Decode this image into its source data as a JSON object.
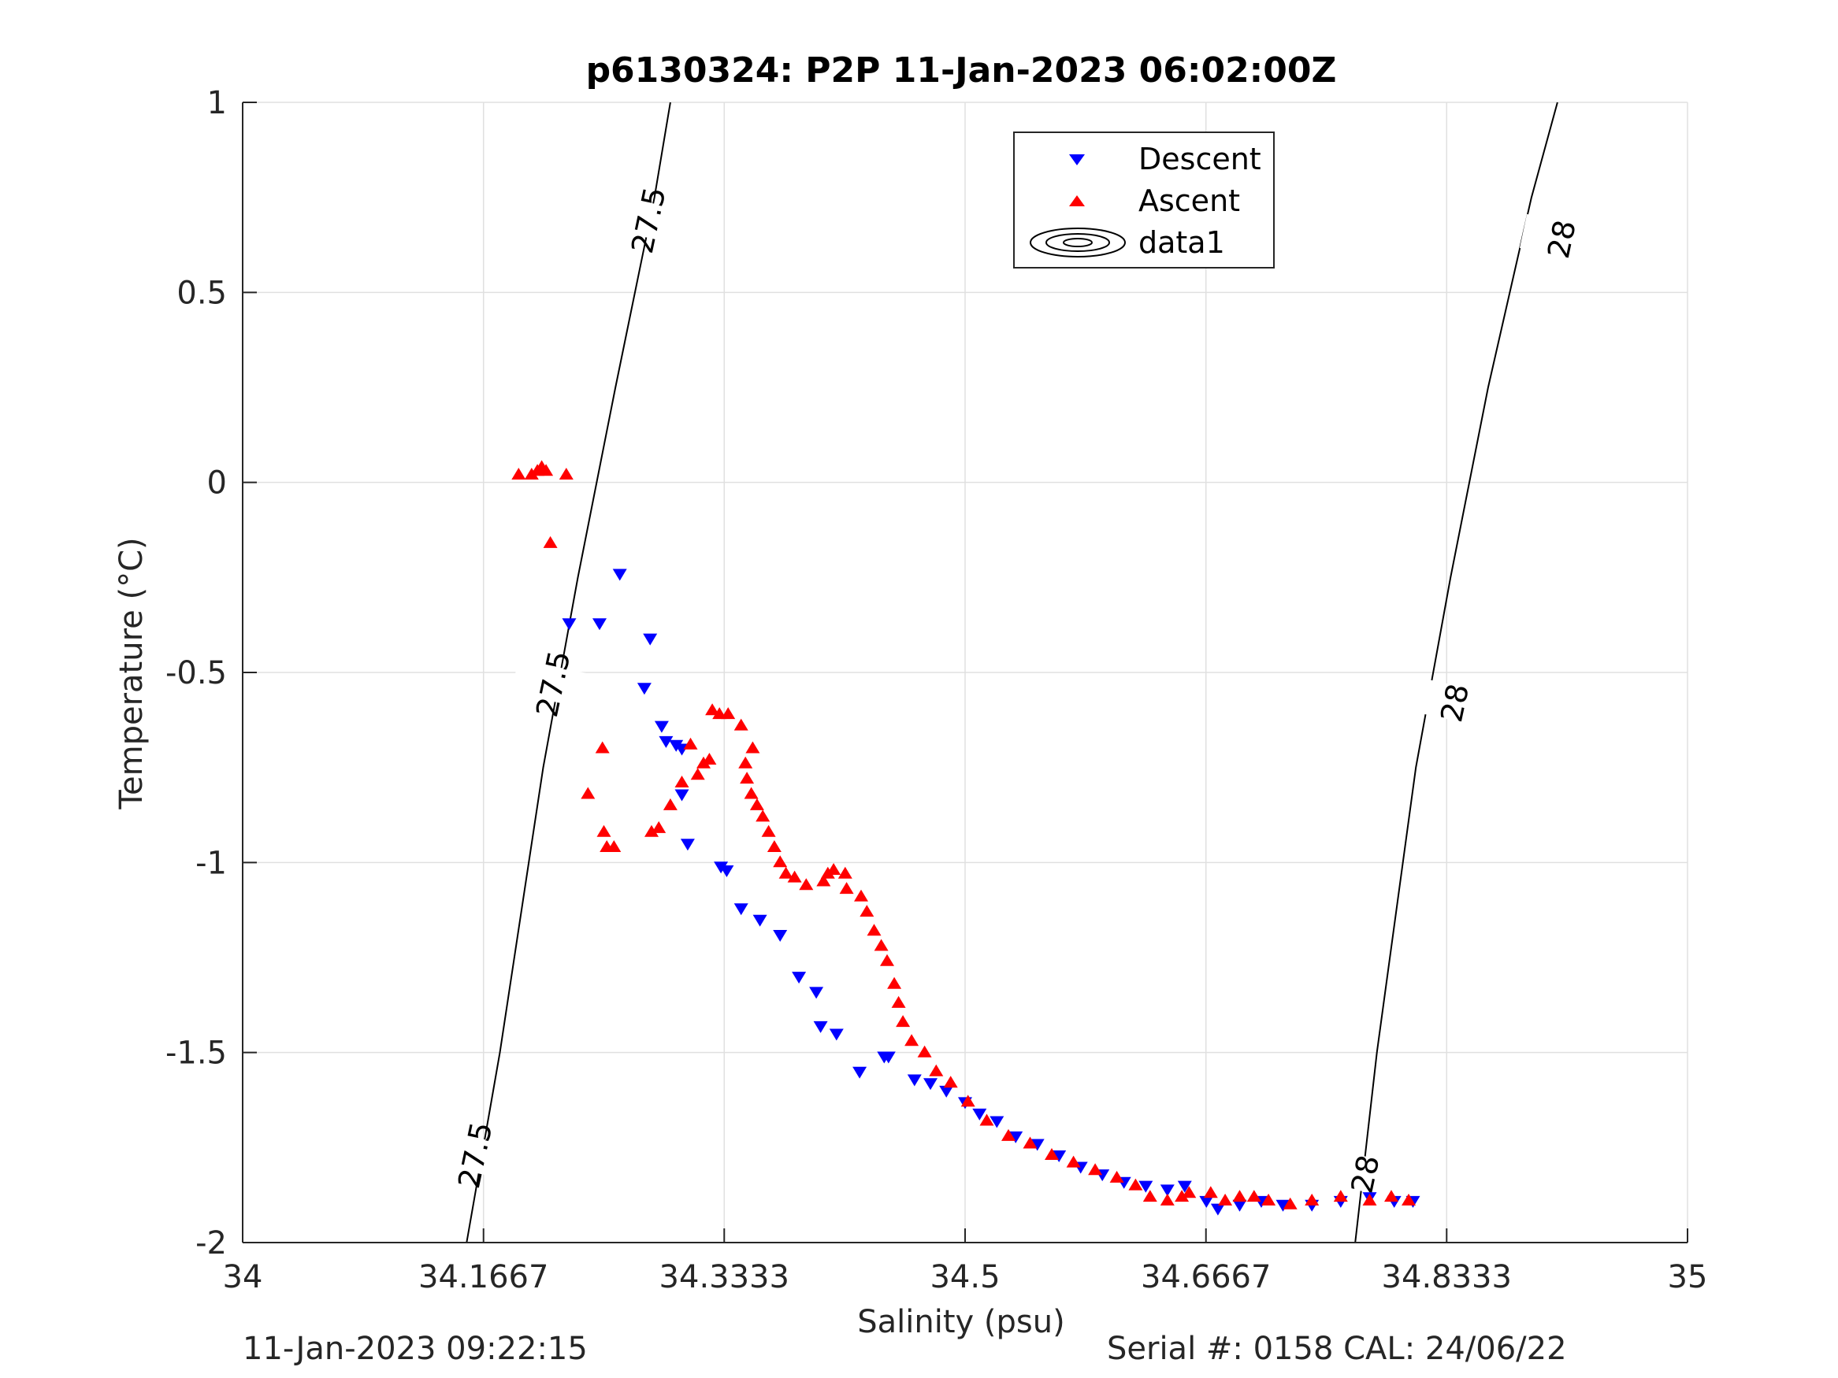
{
  "chart_data": {
    "type": "scatter",
    "title": "p6130324: P2P 11-Jan-2023 06:02:00Z",
    "xlabel": "Salinity (psu)",
    "ylabel": "Temperature (°C)",
    "xlim": [
      34,
      35
    ],
    "ylim": [
      -2,
      1
    ],
    "xticks": [
      34,
      34.1667,
      34.3333,
      34.5,
      34.6667,
      34.8333,
      35
    ],
    "xtick_labels": [
      "34",
      "34.1667",
      "34.3333",
      "34.5",
      "34.6667",
      "34.8333",
      "35"
    ],
    "yticks": [
      -2,
      -1.5,
      -1,
      -0.5,
      0,
      0.5,
      1
    ],
    "ytick_labels": [
      "-2",
      "-1.5",
      "-1",
      "-0.5",
      "0",
      "0.5",
      "1"
    ],
    "grid": true,
    "legend": {
      "placement": "top",
      "entries": [
        "Descent",
        "Ascent",
        "data1"
      ]
    },
    "colors": {
      "descent": "#0000ff",
      "ascent": "#ff0000",
      "contour": "#000000",
      "grid": "#e0e0e0",
      "axis": "#262626"
    },
    "series": [
      {
        "name": "Descent",
        "marker": "triangle-down",
        "color": "#0000ff",
        "points": [
          [
            34.226,
            -0.37
          ],
          [
            34.247,
            -0.37
          ],
          [
            34.261,
            -0.24
          ],
          [
            34.282,
            -0.41
          ],
          [
            34.278,
            -0.54
          ],
          [
            34.29,
            -0.64
          ],
          [
            34.293,
            -0.68
          ],
          [
            34.3,
            -0.69
          ],
          [
            34.304,
            -0.7
          ],
          [
            34.304,
            -0.82
          ],
          [
            34.308,
            -0.95
          ],
          [
            34.331,
            -1.01
          ],
          [
            34.335,
            -1.02
          ],
          [
            34.345,
            -1.12
          ],
          [
            34.358,
            -1.15
          ],
          [
            34.372,
            -1.19
          ],
          [
            34.385,
            -1.3
          ],
          [
            34.397,
            -1.34
          ],
          [
            34.4,
            -1.43
          ],
          [
            34.411,
            -1.45
          ],
          [
            34.427,
            -1.55
          ],
          [
            34.444,
            -1.51
          ],
          [
            34.447,
            -1.51
          ],
          [
            34.465,
            -1.57
          ],
          [
            34.476,
            -1.58
          ],
          [
            34.487,
            -1.6
          ],
          [
            34.5,
            -1.63
          ],
          [
            34.51,
            -1.66
          ],
          [
            34.522,
            -1.68
          ],
          [
            34.535,
            -1.72
          ],
          [
            34.55,
            -1.74
          ],
          [
            34.565,
            -1.77
          ],
          [
            34.58,
            -1.8
          ],
          [
            34.595,
            -1.82
          ],
          [
            34.61,
            -1.84
          ],
          [
            34.625,
            -1.85
          ],
          [
            34.64,
            -1.86
          ],
          [
            34.652,
            -1.85
          ],
          [
            34.667,
            -1.89
          ],
          [
            34.675,
            -1.91
          ],
          [
            34.69,
            -1.9
          ],
          [
            34.705,
            -1.89
          ],
          [
            34.72,
            -1.9
          ],
          [
            34.74,
            -1.9
          ],
          [
            34.76,
            -1.89
          ],
          [
            34.78,
            -1.88
          ],
          [
            34.797,
            -1.89
          ],
          [
            34.81,
            -1.89
          ]
        ]
      },
      {
        "name": "Ascent",
        "marker": "triangle-up",
        "color": "#ff0000",
        "points": [
          [
            34.191,
            0.02
          ],
          [
            34.2,
            0.02
          ],
          [
            34.204,
            0.03
          ],
          [
            34.207,
            0.04
          ],
          [
            34.21,
            0.03
          ],
          [
            34.213,
            -0.16
          ],
          [
            34.224,
            0.02
          ],
          [
            34.239,
            -0.82
          ],
          [
            34.249,
            -0.7
          ],
          [
            34.25,
            -0.92
          ],
          [
            34.252,
            -0.96
          ],
          [
            34.257,
            -0.96
          ],
          [
            34.283,
            -0.92
          ],
          [
            34.288,
            -0.91
          ],
          [
            34.296,
            -0.85
          ],
          [
            34.304,
            -0.79
          ],
          [
            34.31,
            -0.69
          ],
          [
            34.315,
            -0.77
          ],
          [
            34.319,
            -0.74
          ],
          [
            34.323,
            -0.73
          ],
          [
            34.325,
            -0.6
          ],
          [
            34.33,
            -0.61
          ],
          [
            34.336,
            -0.61
          ],
          [
            34.345,
            -0.64
          ],
          [
            34.348,
            -0.74
          ],
          [
            34.349,
            -0.78
          ],
          [
            34.352,
            -0.82
          ],
          [
            34.353,
            -0.7
          ],
          [
            34.356,
            -0.85
          ],
          [
            34.36,
            -0.88
          ],
          [
            34.364,
            -0.92
          ],
          [
            34.368,
            -0.96
          ],
          [
            34.372,
            -1.0
          ],
          [
            34.376,
            -1.03
          ],
          [
            34.382,
            -1.04
          ],
          [
            34.39,
            -1.06
          ],
          [
            34.402,
            -1.05
          ],
          [
            34.405,
            -1.03
          ],
          [
            34.409,
            -1.02
          ],
          [
            34.417,
            -1.03
          ],
          [
            34.418,
            -1.07
          ],
          [
            34.428,
            -1.09
          ],
          [
            34.432,
            -1.13
          ],
          [
            34.437,
            -1.18
          ],
          [
            34.442,
            -1.22
          ],
          [
            34.446,
            -1.26
          ],
          [
            34.451,
            -1.32
          ],
          [
            34.454,
            -1.37
          ],
          [
            34.457,
            -1.42
          ],
          [
            34.463,
            -1.47
          ],
          [
            34.472,
            -1.5
          ],
          [
            34.48,
            -1.55
          ],
          [
            34.49,
            -1.58
          ],
          [
            34.502,
            -1.63
          ],
          [
            34.515,
            -1.68
          ],
          [
            34.53,
            -1.72
          ],
          [
            34.545,
            -1.74
          ],
          [
            34.56,
            -1.77
          ],
          [
            34.575,
            -1.79
          ],
          [
            34.59,
            -1.81
          ],
          [
            34.605,
            -1.83
          ],
          [
            34.618,
            -1.85
          ],
          [
            34.628,
            -1.88
          ],
          [
            34.64,
            -1.89
          ],
          [
            34.65,
            -1.88
          ],
          [
            34.655,
            -1.87
          ],
          [
            34.67,
            -1.87
          ],
          [
            34.68,
            -1.89
          ],
          [
            34.69,
            -1.88
          ],
          [
            34.7,
            -1.88
          ],
          [
            34.71,
            -1.89
          ],
          [
            34.725,
            -1.9
          ],
          [
            34.74,
            -1.89
          ],
          [
            34.76,
            -1.88
          ],
          [
            34.78,
            -1.89
          ],
          [
            34.795,
            -1.88
          ],
          [
            34.807,
            -1.89
          ]
        ]
      },
      {
        "name": "data1",
        "type": "contour",
        "color": "#000000",
        "levels": [
          {
            "label": "27.5",
            "points": [
              [
                34.155,
                -2.0
              ],
              [
                34.178,
                -1.5
              ],
              [
                34.208,
                -0.75
              ],
              [
                34.232,
                -0.25
              ],
              [
                34.258,
                0.25
              ],
              [
                34.285,
                0.75
              ],
              [
                34.296,
                1.0
              ]
            ]
          },
          {
            "label": "28",
            "points": [
              [
                34.77,
                -2.0
              ],
              [
                34.785,
                -1.5
              ],
              [
                34.812,
                -0.75
              ],
              [
                34.836,
                -0.25
              ],
              [
                34.862,
                0.25
              ],
              [
                34.892,
                0.75
              ],
              [
                34.91,
                1.0
              ]
            ]
          }
        ],
        "labels": [
          {
            "text": "27.5",
            "x": 34.161,
            "y": -1.77
          },
          {
            "text": "27.5",
            "x": 34.215,
            "y": -0.53
          },
          {
            "text": "27.5",
            "x": 34.281,
            "y": 0.69
          },
          {
            "text": "28",
            "x": 34.777,
            "y": -1.82
          },
          {
            "text": "28",
            "x": 34.839,
            "y": -0.58
          },
          {
            "text": "28",
            "x": 34.913,
            "y": 0.64
          }
        ]
      }
    ]
  },
  "footer": {
    "timestamp": "11-Jan-2023 09:22:15",
    "serial": "Serial #: 0158  CAL: 24/06/22"
  }
}
